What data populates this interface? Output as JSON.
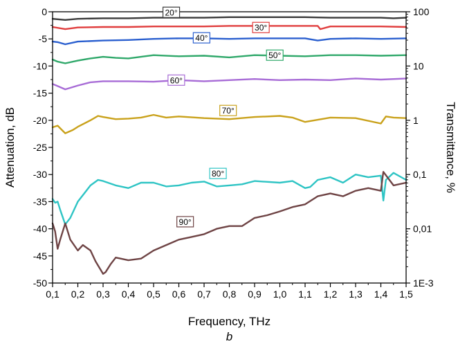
{
  "chart_data": {
    "type": "line",
    "xlabel": "Frequency, THz",
    "ylabel": "Attenuation, dB",
    "y2label": "Transmittance, %",
    "caption": "b",
    "xlim": [
      0.1,
      1.5
    ],
    "ylim": [
      -50,
      0
    ],
    "x_ticks": [
      "0,1",
      "0,2",
      "0,3",
      "0,4",
      "0,5",
      "0,6",
      "0,7",
      "0,8",
      "0,9",
      "1,0",
      "1,1",
      "1,2",
      "1,3",
      "1,4",
      "1,5"
    ],
    "y_ticks": [
      "-50",
      "-45",
      "-40",
      "-35",
      "-30",
      "-25",
      "-20",
      "-15",
      "-10",
      "-5",
      "0"
    ],
    "y2_ticks": [
      {
        "label": "100",
        "db": 0
      },
      {
        "label": "10",
        "db": -10
      },
      {
        "label": "1",
        "db": -20
      },
      {
        "label": "0,1",
        "db": -30
      },
      {
        "label": "0,01",
        "db": -40
      },
      {
        "label": "1E-3",
        "db": -50
      }
    ],
    "grid": false,
    "series": [
      {
        "name": "20°",
        "color": "#3a3a3a",
        "label_at": [
          0.57,
          -0.1
        ],
        "x": [
          0.1,
          0.15,
          0.2,
          0.3,
          0.4,
          0.5,
          0.6,
          0.7,
          0.8,
          0.9,
          1.0,
          1.1,
          1.2,
          1.3,
          1.4,
          1.45,
          1.5
        ],
        "y": [
          -1.3,
          -1.5,
          -1.3,
          -1.2,
          -1.2,
          -1.1,
          -1.1,
          -1.1,
          -1.0,
          -1.0,
          -1.0,
          -1.0,
          -1.1,
          -1.1,
          -1.1,
          -1.2,
          -1.1
        ]
      },
      {
        "name": "30°",
        "color": "#e03c3c",
        "label_at": [
          0.925,
          -2.9
        ],
        "x": [
          0.1,
          0.15,
          0.2,
          0.3,
          0.4,
          0.5,
          0.6,
          0.7,
          0.8,
          0.9,
          1.0,
          1.1,
          1.15,
          1.16,
          1.2,
          1.3,
          1.4,
          1.5
        ],
        "y": [
          -2.8,
          -3.2,
          -2.9,
          -2.8,
          -2.8,
          -2.7,
          -2.7,
          -2.7,
          -2.6,
          -2.6,
          -2.6,
          -2.6,
          -2.6,
          -3.2,
          -2.7,
          -2.7,
          -2.7,
          -2.8
        ]
      },
      {
        "name": "40°",
        "color": "#2a5fcf",
        "label_at": [
          0.69,
          -4.8
        ],
        "x": [
          0.1,
          0.12,
          0.15,
          0.2,
          0.3,
          0.4,
          0.5,
          0.6,
          0.7,
          0.8,
          0.9,
          1.0,
          1.1,
          1.15,
          1.2,
          1.3,
          1.4,
          1.5
        ],
        "y": [
          -5.5,
          -5.6,
          -6.0,
          -5.5,
          -5.3,
          -5.2,
          -5.0,
          -4.9,
          -4.9,
          -5.0,
          -4.9,
          -4.9,
          -4.9,
          -5.3,
          -5.0,
          -4.9,
          -5.0,
          -4.9
        ]
      },
      {
        "name": "50°",
        "color": "#2fa86a",
        "label_at": [
          0.98,
          -8.0
        ],
        "x": [
          0.1,
          0.12,
          0.15,
          0.2,
          0.25,
          0.3,
          0.35,
          0.4,
          0.5,
          0.6,
          0.7,
          0.8,
          0.9,
          1.0,
          1.1,
          1.2,
          1.3,
          1.4,
          1.5
        ],
        "y": [
          -8.8,
          -9.2,
          -9.5,
          -9.0,
          -8.6,
          -8.3,
          -8.5,
          -8.6,
          -8.0,
          -8.2,
          -8.1,
          -8.4,
          -8.0,
          -8.1,
          -8.2,
          -8.0,
          -8.0,
          -8.1,
          -8.0
        ]
      },
      {
        "name": "60°",
        "color": "#a76bd6",
        "label_at": [
          0.59,
          -12.6
        ],
        "x": [
          0.1,
          0.12,
          0.15,
          0.2,
          0.25,
          0.3,
          0.4,
          0.5,
          0.6,
          0.7,
          0.8,
          0.9,
          1.0,
          1.1,
          1.2,
          1.3,
          1.4,
          1.5
        ],
        "y": [
          -13.3,
          -13.7,
          -14.3,
          -13.6,
          -13.0,
          -12.8,
          -12.8,
          -12.9,
          -12.6,
          -12.8,
          -12.6,
          -12.4,
          -12.6,
          -12.5,
          -12.6,
          -12.3,
          -12.5,
          -12.3
        ]
      },
      {
        "name": "70°",
        "color": "#c9a11a",
        "label_at": [
          0.795,
          -18.2
        ],
        "x": [
          0.1,
          0.12,
          0.15,
          0.18,
          0.2,
          0.25,
          0.28,
          0.3,
          0.35,
          0.4,
          0.45,
          0.5,
          0.55,
          0.6,
          0.7,
          0.8,
          0.9,
          1.0,
          1.05,
          1.1,
          1.2,
          1.3,
          1.4,
          1.42,
          1.45,
          1.5
        ],
        "y": [
          -21.3,
          -21.0,
          -22.4,
          -21.8,
          -21.2,
          -20.0,
          -19.2,
          -19.4,
          -19.8,
          -19.7,
          -19.5,
          -19.0,
          -19.5,
          -19.3,
          -19.6,
          -19.8,
          -19.4,
          -19.2,
          -19.5,
          -20.3,
          -19.5,
          -19.6,
          -20.6,
          -19.3,
          -19.5,
          -19.6
        ]
      },
      {
        "name": "80°",
        "color": "#2ec4c4",
        "label_at": [
          0.755,
          -29.8
        ],
        "x": [
          0.1,
          0.11,
          0.12,
          0.13,
          0.15,
          0.17,
          0.2,
          0.25,
          0.28,
          0.3,
          0.35,
          0.4,
          0.45,
          0.5,
          0.55,
          0.6,
          0.65,
          0.7,
          0.75,
          0.8,
          0.85,
          0.9,
          1.0,
          1.05,
          1.1,
          1.12,
          1.15,
          1.2,
          1.25,
          1.3,
          1.35,
          1.4,
          1.41,
          1.42,
          1.45,
          1.5
        ],
        "y": [
          -34.5,
          -35.2,
          -35.0,
          -36.5,
          -39.2,
          -38.0,
          -35.0,
          -32.0,
          -31.0,
          -31.2,
          -32.0,
          -32.5,
          -31.5,
          -31.5,
          -32.2,
          -32.0,
          -31.5,
          -31.3,
          -32.2,
          -32.0,
          -31.8,
          -31.2,
          -31.5,
          -31.2,
          -32.5,
          -32.3,
          -31.0,
          -30.5,
          -31.5,
          -30.0,
          -30.5,
          -30.2,
          -34.8,
          -31.0,
          -29.7,
          -31.0
        ]
      },
      {
        "name": "90°",
        "color": "#6e4344",
        "label_at": [
          0.625,
          -38.7
        ],
        "x": [
          0.1,
          0.11,
          0.12,
          0.13,
          0.15,
          0.17,
          0.2,
          0.22,
          0.25,
          0.27,
          0.3,
          0.31,
          0.33,
          0.35,
          0.4,
          0.45,
          0.5,
          0.55,
          0.6,
          0.65,
          0.7,
          0.75,
          0.8,
          0.85,
          0.9,
          0.95,
          1.0,
          1.05,
          1.1,
          1.15,
          1.2,
          1.25,
          1.3,
          1.35,
          1.4,
          1.41,
          1.45,
          1.5
        ],
        "y": [
          -39.0,
          -40.5,
          -43.7,
          -42.0,
          -39.0,
          -42.0,
          -44.0,
          -43.0,
          -44.0,
          -46.0,
          -48.3,
          -48.0,
          -46.5,
          -45.3,
          -45.8,
          -45.5,
          -44.0,
          -43.0,
          -42.0,
          -41.5,
          -41.0,
          -40.0,
          -39.5,
          -39.5,
          -38.0,
          -37.5,
          -36.8,
          -36.0,
          -35.5,
          -34.0,
          -33.5,
          -34.0,
          -33.0,
          -32.5,
          -33.0,
          -29.5,
          -32.0,
          -31.5
        ]
      }
    ]
  }
}
